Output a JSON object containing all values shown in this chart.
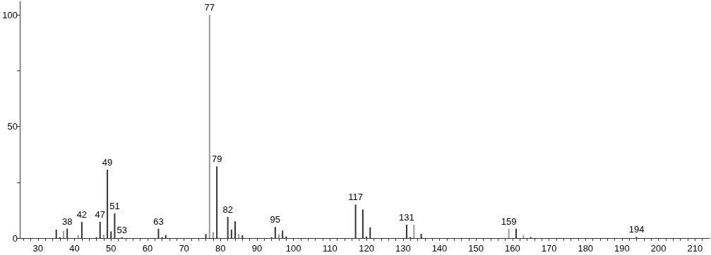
{
  "chart_data": {
    "type": "bar",
    "x": [
      35,
      36,
      37,
      38,
      41,
      42,
      46,
      47,
      48,
      49,
      50,
      51,
      53,
      63,
      64,
      65,
      76,
      77,
      78,
      79,
      82,
      83,
      84,
      85,
      86,
      94,
      95,
      96,
      97,
      98,
      117,
      119,
      120,
      121,
      131,
      132,
      133,
      135,
      159,
      161,
      163,
      165,
      194
    ],
    "values": [
      3.8,
      0.4,
      3.2,
      4.2,
      1.4,
      7.3,
      0.4,
      7.3,
      1.6,
      30.6,
      3.0,
      11.1,
      0.4,
      4.2,
      0.4,
      1.4,
      1.8,
      100,
      2.7,
      32.1,
      9.5,
      3.8,
      7.5,
      1.8,
      1.3,
      0.4,
      5.0,
      1.8,
      3.4,
      0.7,
      15.0,
      12.8,
      0.7,
      4.8,
      6.0,
      0.4,
      6.0,
      1.9,
      4.2,
      4.2,
      1.3,
      0.5,
      0.5
    ],
    "annotations": [
      {
        "text": "38",
        "x": 38,
        "y": 4.2
      },
      {
        "text": "42",
        "x": 42,
        "y": 7.3
      },
      {
        "text": "47",
        "x": 47,
        "y": 7.3
      },
      {
        "text": "49",
        "x": 49,
        "y": 30.6
      },
      {
        "text": "51",
        "x": 51,
        "y": 11.1
      },
      {
        "text": "53",
        "x": 53,
        "y": 0.4
      },
      {
        "text": "63",
        "x": 63,
        "y": 4.2
      },
      {
        "text": "77",
        "x": 77,
        "y": 100
      },
      {
        "text": "79",
        "x": 79,
        "y": 32.1
      },
      {
        "text": "82",
        "x": 82,
        "y": 9.5
      },
      {
        "text": "95",
        "x": 95,
        "y": 5.0
      },
      {
        "text": "117",
        "x": 117,
        "y": 15.0
      },
      {
        "text": "131",
        "x": 131,
        "y": 6.0
      },
      {
        "text": "159",
        "x": 159,
        "y": 4.2
      },
      {
        "text": "194",
        "x": 194,
        "y": 0.5
      }
    ],
    "colors": [
      "#333333",
      "#333333",
      "#999999",
      "#333333",
      "#999999",
      "#333333",
      "#333333",
      "#333333",
      "#999999",
      "#333333",
      "#333333",
      "#333333",
      "#333333",
      "#333333",
      "#333333",
      "#333333",
      "#333333",
      "#999999",
      "#999999",
      "#333333",
      "#333333",
      "#333333",
      "#333333",
      "#999999",
      "#333333",
      "#333333",
      "#333333",
      "#999999",
      "#333333",
      "#333333",
      "#333333",
      "#333333",
      "#333333",
      "#333333",
      "#333333",
      "#333333",
      "#999999",
      "#333333",
      "#999999",
      "#333333",
      "#999999",
      "#333333",
      "#333333"
    ],
    "xlim": [
      25,
      214
    ],
    "xticks": [
      {
        "value": 26,
        "label": null
      },
      {
        "value": 28,
        "label": null
      },
      30,
      {
        "value": 32,
        "label": null
      },
      {
        "value": 34,
        "label": null
      },
      {
        "value": 36,
        "label": null
      },
      {
        "value": 38,
        "label": null
      },
      40,
      {
        "value": 42,
        "label": null
      },
      {
        "value": 44,
        "label": null
      },
      {
        "value": 46,
        "label": null
      },
      {
        "value": 48,
        "label": null
      },
      50,
      {
        "value": 52,
        "label": null
      },
      {
        "value": 54,
        "label": null
      },
      {
        "value": 56,
        "label": null
      },
      {
        "value": 58,
        "label": null
      },
      60,
      {
        "value": 62,
        "label": null
      },
      {
        "value": 64,
        "label": null
      },
      {
        "value": 66,
        "label": null
      },
      {
        "value": 68,
        "label": null
      },
      70,
      {
        "value": 72,
        "label": null
      },
      {
        "value": 74,
        "label": null
      },
      {
        "value": 76,
        "label": null
      },
      {
        "value": 78,
        "label": null
      },
      80,
      {
        "value": 82,
        "label": null
      },
      {
        "value": 84,
        "label": null
      },
      {
        "value": 86,
        "label": null
      },
      {
        "value": 88,
        "label": null
      },
      90,
      {
        "value": 92,
        "label": null
      },
      {
        "value": 94,
        "label": null
      },
      {
        "value": 96,
        "label": null
      },
      {
        "value": 98,
        "label": null
      },
      100,
      {
        "value": 102,
        "label": null
      },
      {
        "value": 104,
        "label": null
      },
      {
        "value": 106,
        "label": null
      },
      {
        "value": 108,
        "label": null
      },
      110,
      {
        "value": 112,
        "label": null
      },
      {
        "value": 114,
        "label": null
      },
      {
        "value": 116,
        "label": null
      },
      {
        "value": 118,
        "label": null
      },
      120,
      {
        "value": 122,
        "label": null
      },
      {
        "value": 124,
        "label": null
      },
      {
        "value": 126,
        "label": null
      },
      {
        "value": 128,
        "label": null
      },
      130,
      {
        "value": 132,
        "label": null
      },
      {
        "value": 134,
        "label": null
      },
      {
        "value": 136,
        "label": null
      },
      {
        "value": 138,
        "label": null
      },
      140,
      {
        "value": 142,
        "label": null
      },
      {
        "value": 144,
        "label": null
      },
      {
        "value": 146,
        "label": null
      },
      {
        "value": 148,
        "label": null
      },
      150,
      {
        "value": 152,
        "label": null
      },
      {
        "value": 154,
        "label": null
      },
      {
        "value": 156,
        "label": null
      },
      {
        "value": 158,
        "label": null
      },
      160,
      {
        "value": 162,
        "label": null
      },
      {
        "value": 164,
        "label": null
      },
      {
        "value": 166,
        "label": null
      },
      {
        "value": 168,
        "label": null
      },
      170,
      {
        "value": 172,
        "label": null
      },
      {
        "value": 174,
        "label": null
      },
      {
        "value": 176,
        "label": null
      },
      {
        "value": 178,
        "label": null
      },
      180,
      {
        "value": 182,
        "label": null
      },
      {
        "value": 184,
        "label": null
      },
      {
        "value": 186,
        "label": null
      },
      {
        "value": 188,
        "label": null
      },
      190,
      {
        "value": 192,
        "label": null
      },
      {
        "value": 194,
        "label": null
      },
      {
        "value": 196,
        "label": null
      },
      {
        "value": 198,
        "label": null
      },
      200,
      {
        "value": 202,
        "label": null
      },
      {
        "value": 204,
        "label": null
      },
      {
        "value": 206,
        "label": null
      },
      {
        "value": 208,
        "label": null
      },
      210,
      {
        "value": 212,
        "label": null
      }
    ],
    "ylim": [
      0,
      106
    ],
    "yticks": [
      0,
      {
        "value": 25,
        "label": null
      },
      50,
      {
        "value": 75,
        "label": null
      },
      100
    ],
    "grid": false
  }
}
